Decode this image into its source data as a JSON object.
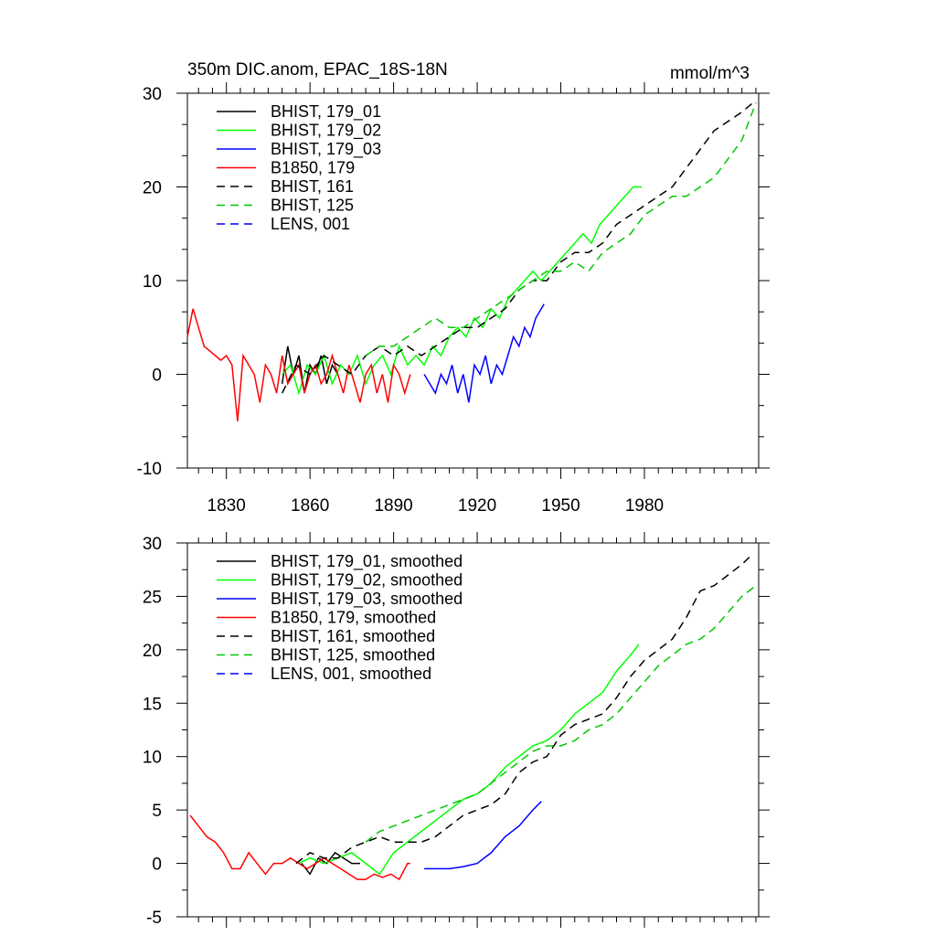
{
  "header": {
    "title": "350m DIC.anom, EPAC_18S-18N",
    "units": "mmol/m^3"
  },
  "colors": {
    "black": "#000000",
    "green": "#00ff00",
    "blue": "#0000ff",
    "red": "#ff0000",
    "darkgreen": "#00c800"
  },
  "chart_data": [
    {
      "type": "line",
      "title": "350m DIC.anom, EPAC_18S-18N",
      "xlabel": "",
      "ylabel": "",
      "xlim": [
        1816,
        2021
      ],
      "ylim": [
        -10,
        30
      ],
      "xticks": [
        1830,
        1860,
        1890,
        1920,
        1950,
        1980
      ],
      "yticks": [
        -10,
        0,
        10,
        20,
        30
      ],
      "legend_position": "top-left",
      "series": [
        {
          "name": "BHIST, 179_01",
          "color": "#000000",
          "dash": false,
          "x": [
            1850,
            1852,
            1854,
            1856,
            1858,
            1860,
            1862,
            1864,
            1866,
            1868,
            1870
          ],
          "y": [
            -1,
            3,
            0,
            2,
            -2,
            1,
            0,
            2,
            -1,
            1,
            0
          ]
        },
        {
          "name": "BHIST, 179_02",
          "color": "#00ff00",
          "dash": false,
          "x": [
            1850,
            1853,
            1856,
            1859,
            1862,
            1865,
            1868,
            1871,
            1874,
            1877,
            1880,
            1883,
            1886,
            1889,
            1892,
            1895,
            1898,
            1901,
            1904,
            1907,
            1910,
            1913,
            1916,
            1919,
            1922,
            1925,
            1928,
            1931,
            1934,
            1937,
            1940,
            1943,
            1946,
            1949,
            1952,
            1955,
            1958,
            1961,
            1964,
            1967,
            1970,
            1973,
            1976,
            1979
          ],
          "y": [
            0,
            1,
            -2,
            1,
            0,
            2,
            -1,
            1,
            0,
            2,
            -1,
            1,
            2,
            0,
            3,
            1,
            2,
            1,
            3,
            2,
            4,
            5,
            4,
            6,
            5,
            7,
            6,
            8,
            9,
            10,
            11,
            10,
            11,
            12,
            13,
            14,
            15,
            14,
            16,
            17,
            18,
            19,
            20,
            20
          ]
        },
        {
          "name": "BHIST, 179_03",
          "color": "#0000ff",
          "dash": false,
          "x": [
            1901,
            1903,
            1905,
            1907,
            1909,
            1911,
            1913,
            1915,
            1917,
            1919,
            1921,
            1923,
            1925,
            1927,
            1929,
            1931,
            1933,
            1935,
            1937,
            1939,
            1941,
            1943,
            1944
          ],
          "y": [
            0,
            -1,
            -2,
            0,
            -1,
            1,
            -2,
            0,
            -3,
            1,
            0,
            2,
            -1,
            1,
            0,
            2,
            4,
            3,
            5,
            4,
            6,
            7,
            7.5
          ]
        },
        {
          "name": "B1850, 179",
          "color": "#ff0000",
          "dash": false,
          "x": [
            1816,
            1818,
            1820,
            1822,
            1824,
            1826,
            1828,
            1830,
            1832,
            1834,
            1836,
            1838,
            1840,
            1842,
            1844,
            1846,
            1848,
            1850,
            1852,
            1854,
            1856,
            1858,
            1860,
            1862,
            1864,
            1866,
            1868,
            1870,
            1872,
            1874,
            1876,
            1878,
            1880,
            1882,
            1884,
            1886,
            1888,
            1890,
            1892,
            1894,
            1896
          ],
          "y": [
            4,
            7,
            5,
            3,
            2.5,
            2,
            1.5,
            2,
            1,
            -5,
            2,
            1,
            0,
            -3,
            1,
            0,
            -2,
            2,
            -1,
            0,
            1,
            -2,
            0,
            1,
            -1,
            0,
            2,
            0,
            -2,
            1,
            -1,
            -3,
            0,
            1,
            -2,
            0,
            -3,
            1,
            0,
            -2,
            0
          ]
        },
        {
          "name": "BHIST, 161",
          "color": "#000000",
          "dash": true,
          "x": [
            1850,
            1855,
            1860,
            1865,
            1870,
            1875,
            1880,
            1885,
            1890,
            1895,
            1900,
            1905,
            1910,
            1915,
            1920,
            1925,
            1930,
            1935,
            1940,
            1945,
            1950,
            1955,
            1960,
            1965,
            1970,
            1975,
            1980,
            1985,
            1990,
            1995,
            2000,
            2005,
            2010,
            2015,
            2019
          ],
          "y": [
            -2,
            1,
            0,
            2,
            1,
            0,
            2,
            3,
            2,
            3,
            2,
            3,
            4,
            5,
            5,
            6,
            7,
            9,
            10,
            10,
            12,
            13,
            13,
            14,
            16,
            17,
            18,
            19,
            20,
            22,
            24,
            26,
            27,
            28,
            29
          ]
        },
        {
          "name": "BHIST, 125",
          "color": "#00c800",
          "dash": true,
          "x": [
            1880,
            1885,
            1890,
            1895,
            1900,
            1905,
            1910,
            1915,
            1920,
            1925,
            1930,
            1935,
            1940,
            1945,
            1950,
            1955,
            1960,
            1965,
            1970,
            1975,
            1980,
            1985,
            1990,
            1995,
            2000,
            2005,
            2010,
            2015,
            2020
          ],
          "y": [
            2,
            3,
            3,
            4,
            5,
            6,
            5,
            5,
            6,
            7,
            8,
            9,
            10,
            11,
            11,
            12,
            11,
            13,
            14,
            15,
            17,
            18,
            19,
            19,
            20,
            21,
            23,
            25,
            29
          ]
        },
        {
          "name": "LENS, 001",
          "color": "#0000ff",
          "dash": true,
          "x": [],
          "y": []
        }
      ]
    },
    {
      "type": "line",
      "title": "",
      "xlabel": "",
      "ylabel": "",
      "xlim": [
        1816,
        2021
      ],
      "ylim": [
        -5,
        30
      ],
      "xticks": [
        1830,
        1860,
        1890,
        1920,
        1950,
        1980
      ],
      "yticks": [
        -5,
        0,
        5,
        10,
        15,
        20,
        25,
        30
      ],
      "legend_position": "top-left",
      "series": [
        {
          "name": "BHIST, 179_01, smoothed",
          "color": "#000000",
          "dash": false,
          "x": [
            1857,
            1860,
            1863,
            1866,
            1869,
            1872,
            1875,
            1878
          ],
          "y": [
            0,
            -1,
            0.5,
            0,
            1,
            0.5,
            0,
            0
          ]
        },
        {
          "name": "BHIST, 179_02, smoothed",
          "color": "#00ff00",
          "dash": false,
          "x": [
            1856,
            1860,
            1865,
            1870,
            1875,
            1880,
            1885,
            1890,
            1895,
            1900,
            1905,
            1910,
            1915,
            1920,
            1925,
            1930,
            1935,
            1940,
            1945,
            1950,
            1955,
            1960,
            1965,
            1970,
            1975,
            1978
          ],
          "y": [
            0,
            0.5,
            0,
            0.5,
            1,
            0,
            -1,
            1,
            2,
            3,
            4,
            5,
            6,
            6.5,
            7.5,
            9,
            10,
            11,
            11.5,
            12.5,
            14,
            15,
            16,
            18,
            19.5,
            20.5
          ]
        },
        {
          "name": "BHIST, 179_03, smoothed",
          "color": "#0000ff",
          "dash": false,
          "x": [
            1901,
            1905,
            1910,
            1915,
            1920,
            1925,
            1930,
            1935,
            1940,
            1943
          ],
          "y": [
            -0.5,
            -0.5,
            -0.5,
            -0.3,
            0,
            1,
            2.5,
            3.5,
            5,
            5.8
          ]
        },
        {
          "name": "B1850, 179, smoothed",
          "color": "#ff0000",
          "dash": false,
          "x": [
            1817,
            1820,
            1823,
            1826,
            1829,
            1832,
            1835,
            1838,
            1841,
            1844,
            1847,
            1850,
            1853,
            1856,
            1859,
            1862,
            1865,
            1868,
            1871,
            1874,
            1877,
            1880,
            1883,
            1886,
            1889,
            1892,
            1895,
            1896
          ],
          "y": [
            4.5,
            3.5,
            2.5,
            2,
            1,
            -0.5,
            -0.5,
            1,
            0,
            -1,
            0,
            0,
            0.5,
            0,
            -0.5,
            0,
            0.5,
            0,
            -0.5,
            -1,
            -1.5,
            -1.5,
            -1,
            -1.3,
            -1,
            -1.5,
            0,
            0
          ]
        },
        {
          "name": "BHIST, 161, smoothed",
          "color": "#000000",
          "dash": true,
          "x": [
            1855,
            1860,
            1865,
            1870,
            1875,
            1880,
            1885,
            1890,
            1895,
            1900,
            1905,
            1910,
            1915,
            1920,
            1925,
            1930,
            1935,
            1940,
            1945,
            1950,
            1955,
            1960,
            1965,
            1970,
            1975,
            1980,
            1985,
            1990,
            1995,
            2000,
            2005,
            2010,
            2015,
            2019
          ],
          "y": [
            0,
            1,
            0.5,
            0.5,
            1.5,
            2,
            2.5,
            2,
            2,
            2,
            2.5,
            3.5,
            4.5,
            5,
            5.5,
            6.5,
            8.5,
            9.5,
            10,
            12,
            13,
            13.5,
            14,
            15.5,
            17.5,
            19,
            20,
            21,
            23,
            25.5,
            26,
            27,
            28,
            29
          ]
        },
        {
          "name": "BHIST, 125, smoothed",
          "color": "#00c800",
          "dash": true,
          "x": [
            1880,
            1885,
            1890,
            1895,
            1900,
            1905,
            1910,
            1915,
            1920,
            1925,
            1930,
            1935,
            1940,
            1945,
            1950,
            1955,
            1960,
            1965,
            1970,
            1975,
            1980,
            1985,
            1990,
            1995,
            2000,
            2005,
            2010,
            2015,
            2020
          ],
          "y": [
            2,
            3,
            3.5,
            4,
            4.5,
            5,
            5.5,
            6,
            6.5,
            7.5,
            8.5,
            9.5,
            10.5,
            11,
            11,
            11.5,
            12.5,
            13,
            14,
            15.5,
            17,
            18.5,
            19.5,
            20.5,
            21,
            22,
            23.5,
            25,
            26
          ]
        },
        {
          "name": "LENS, 001, smoothed",
          "color": "#0000ff",
          "dash": true,
          "x": [],
          "y": []
        }
      ]
    }
  ]
}
